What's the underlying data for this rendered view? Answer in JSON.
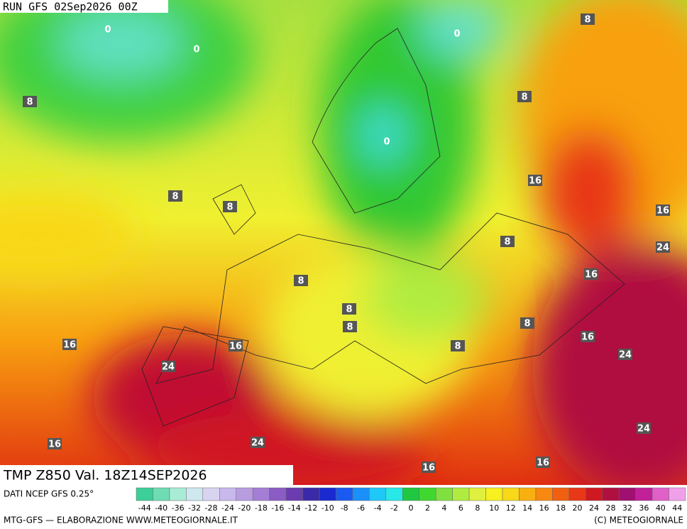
{
  "header": {
    "run": "RUN GFS 02Sep2026 00Z",
    "field": "TMP Z850 Val. 18Z14SEP2026"
  },
  "contour_labels": [
    0,
    0,
    0,
    0,
    8,
    8,
    8,
    8,
    8,
    8,
    8,
    8,
    8,
    8,
    8,
    16,
    16,
    16,
    16,
    16,
    16,
    16,
    16,
    16,
    24,
    24,
    24,
    24,
    24
  ],
  "legend": {
    "source": "DATI NCEP GFS 0.25°",
    "labels": [
      -44,
      -40,
      -36,
      -32,
      -28,
      -24,
      -20,
      -18,
      -16,
      -14,
      -12,
      -10,
      -8,
      -6,
      -4,
      -2,
      0,
      2,
      4,
      6,
      8,
      10,
      12,
      14,
      16,
      18,
      20,
      24,
      28,
      32,
      36,
      40,
      44
    ],
    "colors": [
      "#3ccf9a",
      "#6fdcb4",
      "#a8ecd6",
      "#cfe8f0",
      "#d8d4f0",
      "#c8b8ec",
      "#b89ce0",
      "#a47ed4",
      "#8a5cc4",
      "#6a3cb0",
      "#3a2aa8",
      "#1a2ad0",
      "#1a5af0",
      "#1a90f8",
      "#20c8f8",
      "#28e8e8",
      "#20c840",
      "#40d830",
      "#80e040",
      "#b0ec40",
      "#e0f040",
      "#f8f020",
      "#f8d818",
      "#f8b010",
      "#f88810",
      "#f06010",
      "#e83818",
      "#d01820",
      "#b01040",
      "#a01070",
      "#c02098",
      "#e060c8",
      "#f0a0e8"
    ]
  },
  "footer": {
    "left": "MTG-GFS — ELABORAZIONE WWW.METEOGIORNALE.IT",
    "right": "(C) METEOGIORNALE"
  }
}
